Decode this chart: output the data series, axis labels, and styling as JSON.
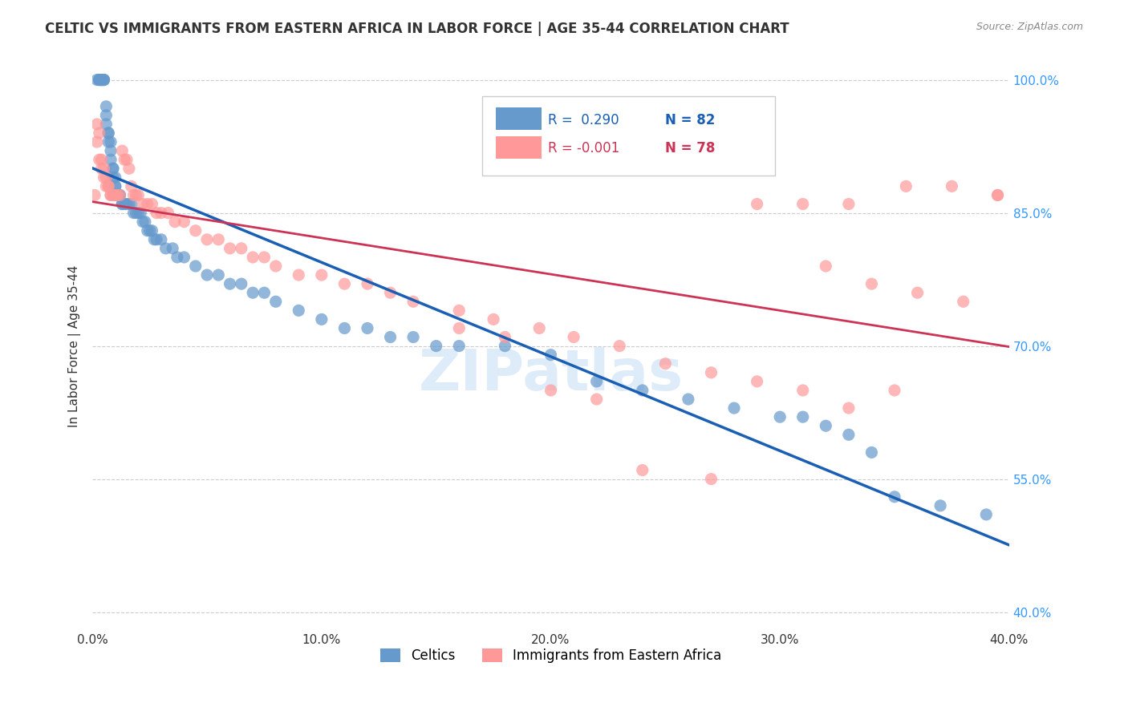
{
  "title": "CELTIC VS IMMIGRANTS FROM EASTERN AFRICA IN LABOR FORCE | AGE 35-44 CORRELATION CHART",
  "source": "Source: ZipAtlas.com",
  "xlabel": "",
  "ylabel": "In Labor Force | Age 35-44",
  "xlim": [
    0.0,
    0.4
  ],
  "ylim": [
    0.38,
    1.02
  ],
  "xticks": [
    0.0,
    0.05,
    0.1,
    0.15,
    0.2,
    0.25,
    0.3,
    0.35,
    0.4
  ],
  "xticklabels": [
    "0.0%",
    "",
    "10.0%",
    "",
    "20.0%",
    "",
    "30.0%",
    "",
    "40.0%"
  ],
  "yticks_right": [
    0.4,
    0.55,
    0.7,
    0.85,
    1.0
  ],
  "ytick_right_labels": [
    "40.0%",
    "55.0%",
    "70.0%",
    "85.0%",
    "100.0%"
  ],
  "blue_R": 0.29,
  "blue_N": 82,
  "pink_R": -0.001,
  "pink_N": 78,
  "blue_color": "#6699CC",
  "pink_color": "#FF9999",
  "trend_blue": "#1a5fb4",
  "trend_pink": "#cc3355",
  "legend_label_blue": "Celtics",
  "legend_label_pink": "Immigrants from Eastern Africa",
  "watermark": "ZIPatlas",
  "blue_x": [
    0.002,
    0.003,
    0.003,
    0.003,
    0.004,
    0.004,
    0.004,
    0.004,
    0.005,
    0.005,
    0.005,
    0.006,
    0.006,
    0.006,
    0.007,
    0.007,
    0.007,
    0.008,
    0.008,
    0.008,
    0.009,
    0.009,
    0.009,
    0.01,
    0.01,
    0.01,
    0.011,
    0.011,
    0.012,
    0.012,
    0.013,
    0.013,
    0.014,
    0.015,
    0.016,
    0.017,
    0.018,
    0.019,
    0.02,
    0.021,
    0.022,
    0.023,
    0.024,
    0.025,
    0.026,
    0.027,
    0.028,
    0.03,
    0.032,
    0.035,
    0.037,
    0.04,
    0.045,
    0.05,
    0.055,
    0.06,
    0.065,
    0.07,
    0.075,
    0.08,
    0.09,
    0.1,
    0.11,
    0.12,
    0.13,
    0.14,
    0.15,
    0.16,
    0.18,
    0.2,
    0.22,
    0.24,
    0.26,
    0.28,
    0.3,
    0.31,
    0.32,
    0.33,
    0.34,
    0.35,
    0.37,
    0.39
  ],
  "blue_y": [
    1.0,
    1.0,
    1.0,
    1.0,
    1.0,
    1.0,
    1.0,
    1.0,
    1.0,
    1.0,
    1.0,
    0.97,
    0.96,
    0.95,
    0.94,
    0.94,
    0.93,
    0.93,
    0.92,
    0.91,
    0.9,
    0.9,
    0.89,
    0.89,
    0.88,
    0.88,
    0.87,
    0.87,
    0.87,
    0.87,
    0.86,
    0.86,
    0.86,
    0.86,
    0.86,
    0.86,
    0.85,
    0.85,
    0.85,
    0.85,
    0.84,
    0.84,
    0.83,
    0.83,
    0.83,
    0.82,
    0.82,
    0.82,
    0.81,
    0.81,
    0.8,
    0.8,
    0.79,
    0.78,
    0.78,
    0.77,
    0.77,
    0.76,
    0.76,
    0.75,
    0.74,
    0.73,
    0.72,
    0.72,
    0.71,
    0.71,
    0.7,
    0.7,
    0.7,
    0.69,
    0.66,
    0.65,
    0.64,
    0.63,
    0.62,
    0.62,
    0.61,
    0.6,
    0.58,
    0.53,
    0.52,
    0.51
  ],
  "pink_x": [
    0.001,
    0.002,
    0.002,
    0.003,
    0.003,
    0.004,
    0.004,
    0.005,
    0.005,
    0.006,
    0.006,
    0.007,
    0.007,
    0.008,
    0.008,
    0.009,
    0.009,
    0.01,
    0.011,
    0.012,
    0.013,
    0.014,
    0.015,
    0.016,
    0.017,
    0.018,
    0.019,
    0.02,
    0.022,
    0.024,
    0.026,
    0.028,
    0.03,
    0.033,
    0.036,
    0.04,
    0.045,
    0.05,
    0.055,
    0.06,
    0.065,
    0.07,
    0.075,
    0.08,
    0.09,
    0.1,
    0.11,
    0.12,
    0.13,
    0.14,
    0.16,
    0.175,
    0.195,
    0.21,
    0.23,
    0.25,
    0.27,
    0.29,
    0.31,
    0.33,
    0.355,
    0.375,
    0.395,
    0.32,
    0.34,
    0.36,
    0.38,
    0.395,
    0.29,
    0.31,
    0.33,
    0.35,
    0.16,
    0.18,
    0.2,
    0.22,
    0.24,
    0.27
  ],
  "pink_y": [
    0.87,
    0.95,
    0.93,
    0.94,
    0.91,
    0.91,
    0.9,
    0.9,
    0.89,
    0.89,
    0.88,
    0.88,
    0.88,
    0.87,
    0.87,
    0.87,
    0.87,
    0.87,
    0.87,
    0.87,
    0.92,
    0.91,
    0.91,
    0.9,
    0.88,
    0.87,
    0.87,
    0.87,
    0.86,
    0.86,
    0.86,
    0.85,
    0.85,
    0.85,
    0.84,
    0.84,
    0.83,
    0.82,
    0.82,
    0.81,
    0.81,
    0.8,
    0.8,
    0.79,
    0.78,
    0.78,
    0.77,
    0.77,
    0.76,
    0.75,
    0.74,
    0.73,
    0.72,
    0.71,
    0.7,
    0.68,
    0.67,
    0.66,
    0.65,
    0.63,
    0.88,
    0.88,
    0.87,
    0.79,
    0.77,
    0.76,
    0.75,
    0.87,
    0.86,
    0.86,
    0.86,
    0.65,
    0.72,
    0.71,
    0.65,
    0.64,
    0.56,
    0.55
  ]
}
